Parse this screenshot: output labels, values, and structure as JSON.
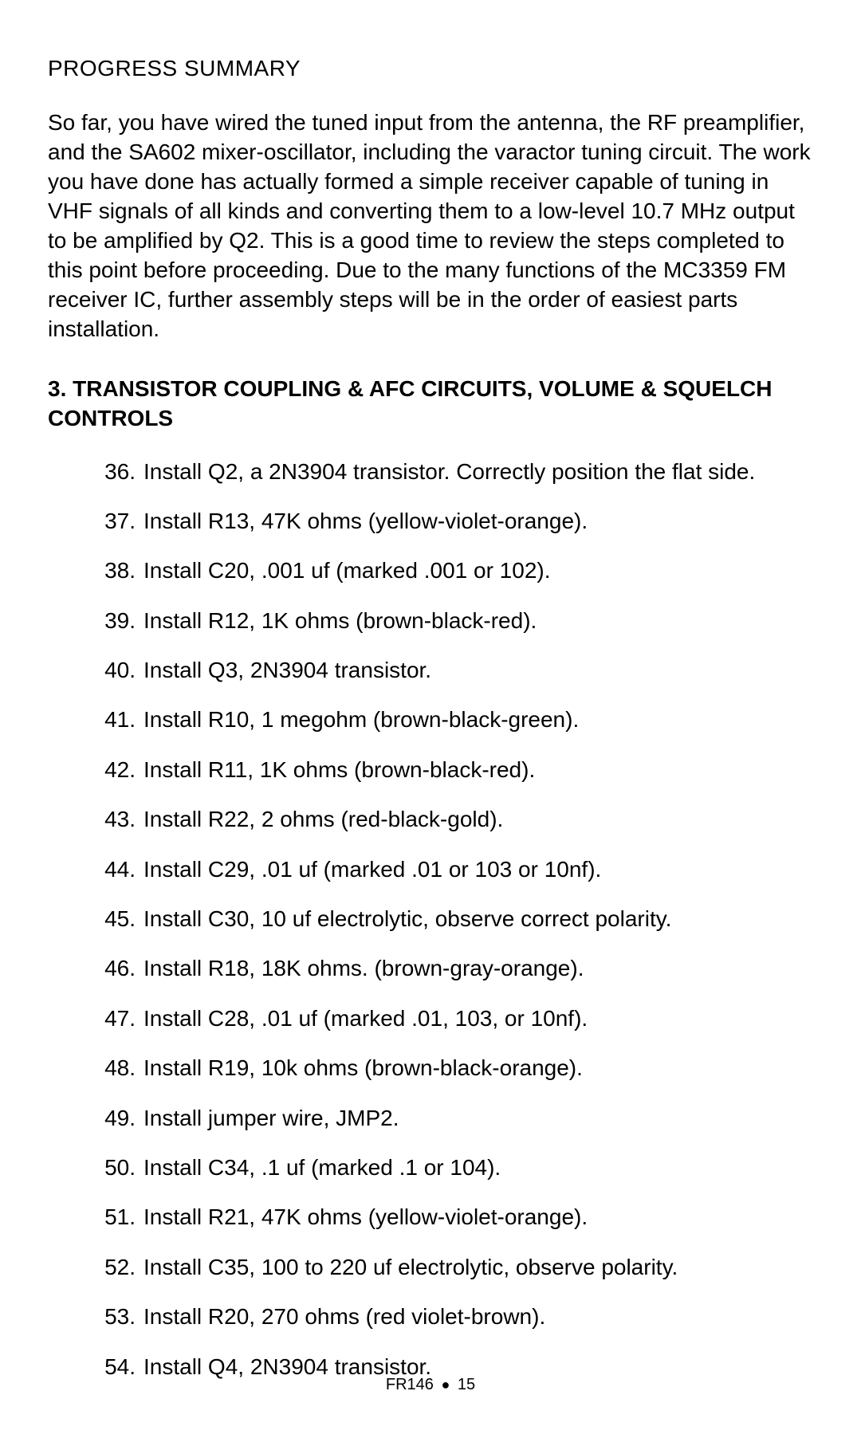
{
  "progress_summary": {
    "title": "PROGRESS SUMMARY",
    "paragraph": "So far, you have wired the tuned input from the antenna, the RF preamplifier, and the SA602 mixer-oscillator, including the varactor tuning circuit. The work you have done has actually formed a simple receiver capable of tuning in VHF signals of all kinds and converting them to a low-level 10.7 MHz output to be amplified by Q2. This is a good time to review the steps completed to this point before proceeding.  Due to the many functions of the MC3359 FM receiver IC, further assembly steps will be in the order of easiest parts installation."
  },
  "subsection": {
    "heading": "3. TRANSISTOR COUPLING & AFC CIRCUITS, VOLUME & SQUELCH CONTROLS",
    "steps": [
      {
        "n": "36.",
        "text": "Install Q2, a 2N3904 transistor. Correctly position the flat side."
      },
      {
        "n": "37.",
        "text": "Install R13, 47K ohms (yellow-violet-orange)."
      },
      {
        "n": "38.",
        "text": "Install C20, .001 uf (marked .001 or 102)."
      },
      {
        "n": "39.",
        "text": "Install R12, 1K ohms (brown-black-red)."
      },
      {
        "n": "40.",
        "text": "Install Q3, 2N3904 transistor."
      },
      {
        "n": "41.",
        "text": "Install R10, 1 megohm (brown-black-green)."
      },
      {
        "n": "42.",
        "text": "Install R11, 1K ohms (brown-black-red)."
      },
      {
        "n": "43.",
        "text": "Install R22, 2 ohms (red-black-gold)."
      },
      {
        "n": "44.",
        "text": "Install C29, .01 uf (marked .01 or 103 or 10nf)."
      },
      {
        "n": "45.",
        "text": "Install C30, 10 uf electrolytic, observe correct polarity."
      },
      {
        "n": "46.",
        "text": "Install R18, 18K ohms. (brown-gray-orange)."
      },
      {
        "n": "47.",
        "text": "Install C28, .01 uf (marked .01, 103, or 10nf)."
      },
      {
        "n": "48.",
        "text": "Install R19, 10k ohms (brown-black-orange)."
      },
      {
        "n": "49.",
        "text": "Install jumper wire, JMP2."
      },
      {
        "n": "50.",
        "text": "Install C34, .1 uf (marked .1 or 104)."
      },
      {
        "n": "51.",
        "text": "Install R21, 47K ohms (yellow-violet-orange)."
      },
      {
        "n": "52.",
        "text": "Install C35, 100 to 220 uf electrolytic, observe polarity."
      },
      {
        "n": "53.",
        "text": "Install R20, 270 ohms (red violet-brown)."
      },
      {
        "n": "54.",
        "text": "Install Q4, 2N3904 transistor."
      }
    ]
  },
  "footer": {
    "doc_id": "FR146",
    "bullet": "●",
    "page_number": "15"
  }
}
